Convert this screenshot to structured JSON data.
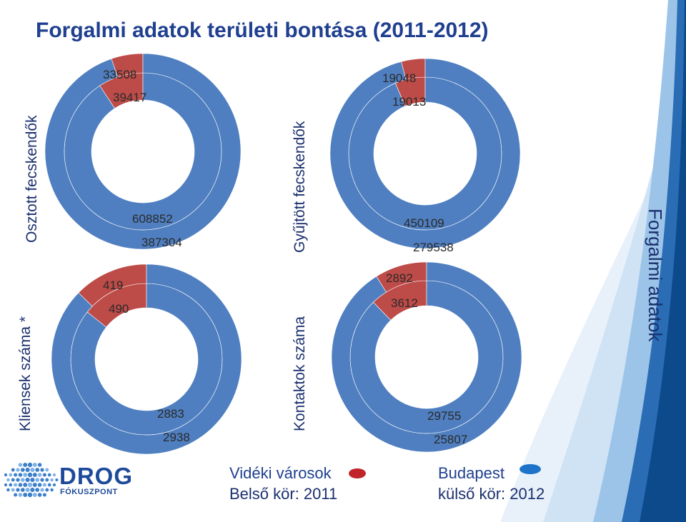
{
  "title": "Forgalmi adatok területi bontása (2011-2012)",
  "side_label": "Forgalmi adatok",
  "colors": {
    "outer_blue": "#4f7fc0",
    "inner_red": "#bd4b48",
    "title": "#1f3f8f",
    "band_dark": "#0d4a8c"
  },
  "legend": {
    "red_label": "Vidéki városok",
    "blue_label": "Budapest",
    "inner_label": "Belső kör: 2011",
    "outer_label": "külső kör: 2012"
  },
  "logo": {
    "name": "DROG",
    "sub": "FÓKUSZPONT",
    "icon": "globe-dots-icon"
  },
  "chart_data": [
    {
      "type": "donut",
      "title": "Osztott fecskendők",
      "series": [
        {
          "name": "2011",
          "ring": "inner",
          "values": [
            39417,
            387304
          ]
        },
        {
          "name": "2012",
          "ring": "outer",
          "values": [
            33508,
            608852
          ]
        }
      ],
      "categories": [
        "Vidéki városok",
        "Budapest"
      ],
      "labels": {
        "outer_red": "33508",
        "inner_red": "39417",
        "outer_blue": "608852",
        "inner_blue": "387304"
      }
    },
    {
      "type": "donut",
      "title": "Gyűjtött fecskendők",
      "series": [
        {
          "name": "2011",
          "ring": "inner",
          "values": [
            19013,
            279538
          ]
        },
        {
          "name": "2012",
          "ring": "outer",
          "values": [
            19048,
            450109
          ]
        }
      ],
      "categories": [
        "Vidéki városok",
        "Budapest"
      ],
      "labels": {
        "outer_red": "19048",
        "inner_red": "19013",
        "outer_blue": "450109",
        "inner_blue": "279538"
      }
    },
    {
      "type": "donut",
      "title": "Kliensek száma *",
      "series": [
        {
          "name": "2011",
          "ring": "inner",
          "values": [
            490,
            2938
          ]
        },
        {
          "name": "2012",
          "ring": "outer",
          "values": [
            419,
            2883
          ]
        }
      ],
      "categories": [
        "Vidéki városok",
        "Budapest"
      ],
      "labels": {
        "outer_red": "419",
        "inner_red": "490",
        "outer_blue": "2883",
        "inner_blue": "2938"
      }
    },
    {
      "type": "donut",
      "title": "Kontaktok száma",
      "series": [
        {
          "name": "2011",
          "ring": "inner",
          "values": [
            3612,
            25807
          ]
        },
        {
          "name": "2012",
          "ring": "outer",
          "values": [
            2892,
            29755
          ]
        }
      ],
      "categories": [
        "Vidéki városok",
        "Budapest"
      ],
      "labels": {
        "outer_red": "2892",
        "inner_red": "3612",
        "outer_blue": "29755",
        "inner_blue": "25807"
      }
    }
  ]
}
